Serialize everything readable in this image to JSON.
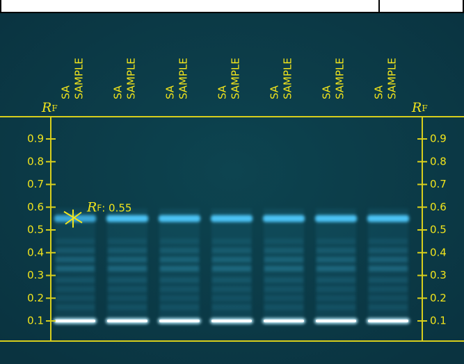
{
  "lanes": [
    {
      "reference": "SA",
      "sample": "SAMPLE"
    },
    {
      "reference": "SA",
      "sample": "SAMPLE"
    },
    {
      "reference": "SA",
      "sample": "SAMPLE"
    },
    {
      "reference": "SA",
      "sample": "SAMPLE"
    },
    {
      "reference": "SA",
      "sample": "SAMPLE"
    },
    {
      "reference": "SA",
      "sample": "SAMPLE"
    },
    {
      "reference": "SA",
      "sample": "SAMPLE"
    }
  ],
  "rf_axis": {
    "symbol": "R",
    "subscript": "F",
    "ticks": [
      0.9,
      0.8,
      0.7,
      0.6,
      0.5,
      0.4,
      0.3,
      0.2,
      0.1
    ]
  },
  "annotation": {
    "symbol": "R",
    "subscript": "F",
    "text": ": 0.55",
    "rf": 0.55
  }
}
